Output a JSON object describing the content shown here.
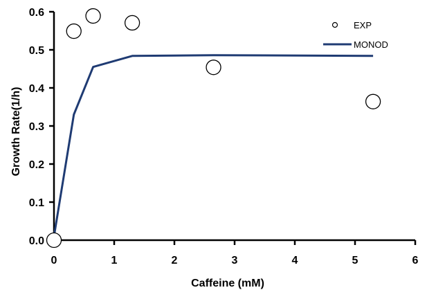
{
  "chart_data": {
    "type": "scatter",
    "title": "",
    "xlabel": "Caffeine (mM)",
    "ylabel": "Growth Rate(1/h)",
    "xlim": [
      0,
      6
    ],
    "ylim": [
      0,
      0.6
    ],
    "x_ticks": [
      0,
      1,
      2,
      3,
      4,
      5,
      6
    ],
    "x_tick_labels": [
      "0",
      "1",
      "2",
      "3",
      "4",
      "5",
      "6"
    ],
    "y_ticks": [
      0.0,
      0.1,
      0.2,
      0.3,
      0.4,
      0.5,
      0.6
    ],
    "y_tick_labels": [
      "0.0",
      "0.1",
      "0.2",
      "0.3",
      "0.4",
      "0.5",
      "0.6"
    ],
    "grid": false,
    "legend_position": "top-right",
    "legend": [
      "EXP",
      "MONOD"
    ],
    "series": [
      {
        "name": "EXP",
        "type": "scatter",
        "marker": "open-circle",
        "x": [
          0.0,
          0.33,
          0.65,
          1.3,
          2.65,
          5.3
        ],
        "y": [
          0.0,
          0.549,
          0.589,
          0.571,
          0.454,
          0.364
        ]
      },
      {
        "name": "MONOD",
        "type": "line",
        "color": "#1f3b73",
        "x": [
          0.0,
          0.33,
          0.65,
          1.3,
          2.65,
          5.3
        ],
        "y": [
          0.01,
          0.33,
          0.455,
          0.484,
          0.486,
          0.484
        ]
      }
    ]
  }
}
